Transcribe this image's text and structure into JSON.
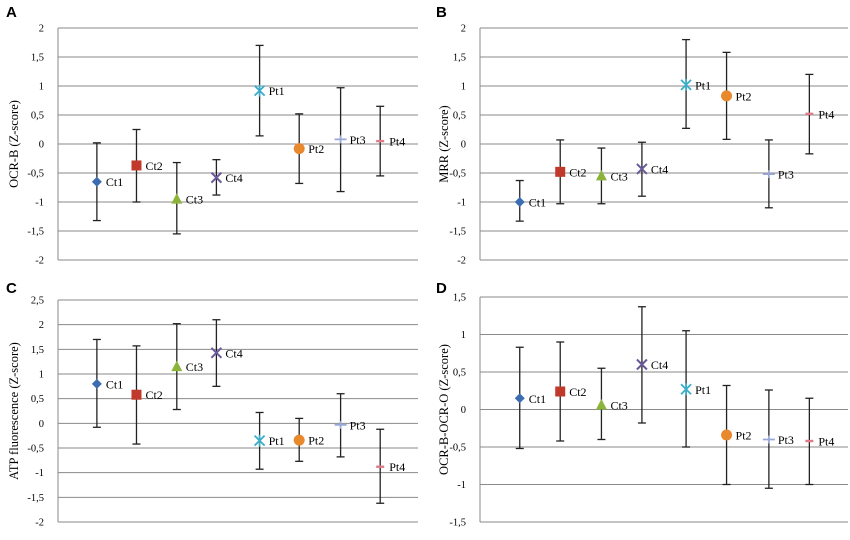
{
  "chart_data": [
    {
      "panel": "A",
      "type": "scatter",
      "ylabel": "OCR-B (Z-score)",
      "ylim": [
        -2,
        2
      ],
      "ytick_step": 0.5,
      "yticks": [
        "2",
        "1,5",
        "1",
        "0,5",
        "0",
        "-0,5",
        "-1",
        "-1,5",
        "-2"
      ],
      "grid": true,
      "points": [
        {
          "label": "Ct1",
          "value": -0.65,
          "low": -1.32,
          "high": 0.02,
          "marker": "diamond",
          "color": "#3c6db0"
        },
        {
          "label": "Ct2",
          "value": -0.37,
          "low": -1.0,
          "high": 0.25,
          "marker": "square",
          "color": "#c0392b"
        },
        {
          "label": "Ct3",
          "value": -0.95,
          "low": -1.55,
          "high": -0.32,
          "marker": "triangle",
          "color": "#8db43a"
        },
        {
          "label": "Ct4",
          "value": -0.58,
          "low": -0.88,
          "high": -0.27,
          "marker": "x",
          "color": "#6b5a9a"
        },
        {
          "label": "Pt1",
          "value": 0.92,
          "low": 0.14,
          "high": 1.7,
          "marker": "star",
          "color": "#3cacc8"
        },
        {
          "label": "Pt2",
          "value": -0.08,
          "low": -0.68,
          "high": 0.52,
          "marker": "circle",
          "color": "#e8892e"
        },
        {
          "label": "Pt3",
          "value": 0.08,
          "low": -0.82,
          "high": 0.97,
          "marker": "plus",
          "color": "#9aa8d8"
        },
        {
          "label": "Pt4",
          "value": 0.05,
          "low": -0.55,
          "high": 0.65,
          "marker": "dash",
          "color": "#e07a8a"
        }
      ]
    },
    {
      "panel": "B",
      "type": "scatter",
      "ylabel": "MRR (Z-score)",
      "ylim": [
        -2,
        2
      ],
      "ytick_step": 0.5,
      "yticks": [
        "2",
        "1,5",
        "1",
        "0,5",
        "0",
        "-0,5",
        "-1",
        "-1,5",
        "-2"
      ],
      "grid": true,
      "points": [
        {
          "label": "Ct1",
          "value": -1.0,
          "low": -1.33,
          "high": -0.63,
          "marker": "diamond",
          "color": "#3c6db0"
        },
        {
          "label": "Ct2",
          "value": -0.48,
          "low": -1.03,
          "high": 0.07,
          "marker": "square",
          "color": "#c0392b"
        },
        {
          "label": "Ct3",
          "value": -0.55,
          "low": -1.03,
          "high": -0.07,
          "marker": "triangle",
          "color": "#8db43a"
        },
        {
          "label": "Ct4",
          "value": -0.43,
          "low": -0.9,
          "high": 0.03,
          "marker": "x",
          "color": "#6b5a9a"
        },
        {
          "label": "Pt1",
          "value": 1.02,
          "low": 0.27,
          "high": 1.8,
          "marker": "star",
          "color": "#3cacc8"
        },
        {
          "label": "Pt2",
          "value": 0.83,
          "low": 0.08,
          "high": 1.58,
          "marker": "circle",
          "color": "#e8892e"
        },
        {
          "label": "Pt3",
          "value": -0.52,
          "low": -1.1,
          "high": 0.07,
          "marker": "plus",
          "color": "#9aa8d8"
        },
        {
          "label": "Pt4",
          "value": 0.52,
          "low": -0.17,
          "high": 1.2,
          "marker": "dash",
          "color": "#e07a8a"
        }
      ]
    },
    {
      "panel": "C",
      "type": "scatter",
      "ylabel": "ATP fluorescence (Z-score)",
      "ylim": [
        -2,
        2.5
      ],
      "ytick_step": 0.5,
      "yticks": [
        "2,5",
        "2",
        "1,5",
        "1",
        "0,5",
        "0",
        "-0,5",
        "-1",
        "-1,5",
        "-2"
      ],
      "grid": true,
      "points": [
        {
          "label": "Ct1",
          "value": 0.8,
          "low": -0.08,
          "high": 1.7,
          "marker": "diamond",
          "color": "#3c6db0"
        },
        {
          "label": "Ct2",
          "value": 0.58,
          "low": -0.42,
          "high": 1.57,
          "marker": "square",
          "color": "#c0392b"
        },
        {
          "label": "Ct3",
          "value": 1.15,
          "low": 0.28,
          "high": 2.02,
          "marker": "triangle",
          "color": "#8db43a"
        },
        {
          "label": "Ct4",
          "value": 1.43,
          "low": 0.75,
          "high": 2.1,
          "marker": "x",
          "color": "#6b5a9a"
        },
        {
          "label": "Pt1",
          "value": -0.35,
          "low": -0.93,
          "high": 0.22,
          "marker": "star",
          "color": "#3cacc8"
        },
        {
          "label": "Pt2",
          "value": -0.34,
          "low": -0.77,
          "high": 0.1,
          "marker": "circle",
          "color": "#e8892e"
        },
        {
          "label": "Pt3",
          "value": -0.03,
          "low": -0.68,
          "high": 0.6,
          "marker": "plus",
          "color": "#9aa8d8"
        },
        {
          "label": "Pt4",
          "value": -0.88,
          "low": -1.62,
          "high": -0.12,
          "marker": "dash",
          "color": "#e07a8a"
        }
      ]
    },
    {
      "panel": "D",
      "type": "scatter",
      "ylabel": "OCR-B-OCR-O (Z-score)",
      "ylim": [
        -1.5,
        1.5
      ],
      "ytick_step": 0.5,
      "yticks": [
        "1,5",
        "1",
        "0,5",
        "0",
        "-0,5",
        "-1",
        "-1,5"
      ],
      "grid": true,
      "points": [
        {
          "label": "Ct1",
          "value": 0.15,
          "low": -0.52,
          "high": 0.83,
          "marker": "diamond",
          "color": "#3c6db0"
        },
        {
          "label": "Ct2",
          "value": 0.24,
          "low": -0.42,
          "high": 0.9,
          "marker": "square",
          "color": "#c0392b"
        },
        {
          "label": "Ct3",
          "value": 0.06,
          "low": -0.4,
          "high": 0.55,
          "marker": "triangle",
          "color": "#8db43a"
        },
        {
          "label": "Ct4",
          "value": 0.6,
          "low": -0.18,
          "high": 1.37,
          "marker": "x",
          "color": "#6b5a9a"
        },
        {
          "label": "Pt1",
          "value": 0.27,
          "low": -0.5,
          "high": 1.05,
          "marker": "star",
          "color": "#3cacc8"
        },
        {
          "label": "Pt2",
          "value": -0.34,
          "low": -1.0,
          "high": 0.32,
          "marker": "circle",
          "color": "#e8892e"
        },
        {
          "label": "Pt3",
          "value": -0.4,
          "low": -1.05,
          "high": 0.26,
          "marker": "plus",
          "color": "#9aa8d8"
        },
        {
          "label": "Pt4",
          "value": -0.42,
          "low": -1.0,
          "high": 0.15,
          "marker": "dash",
          "color": "#e07a8a"
        }
      ]
    }
  ]
}
